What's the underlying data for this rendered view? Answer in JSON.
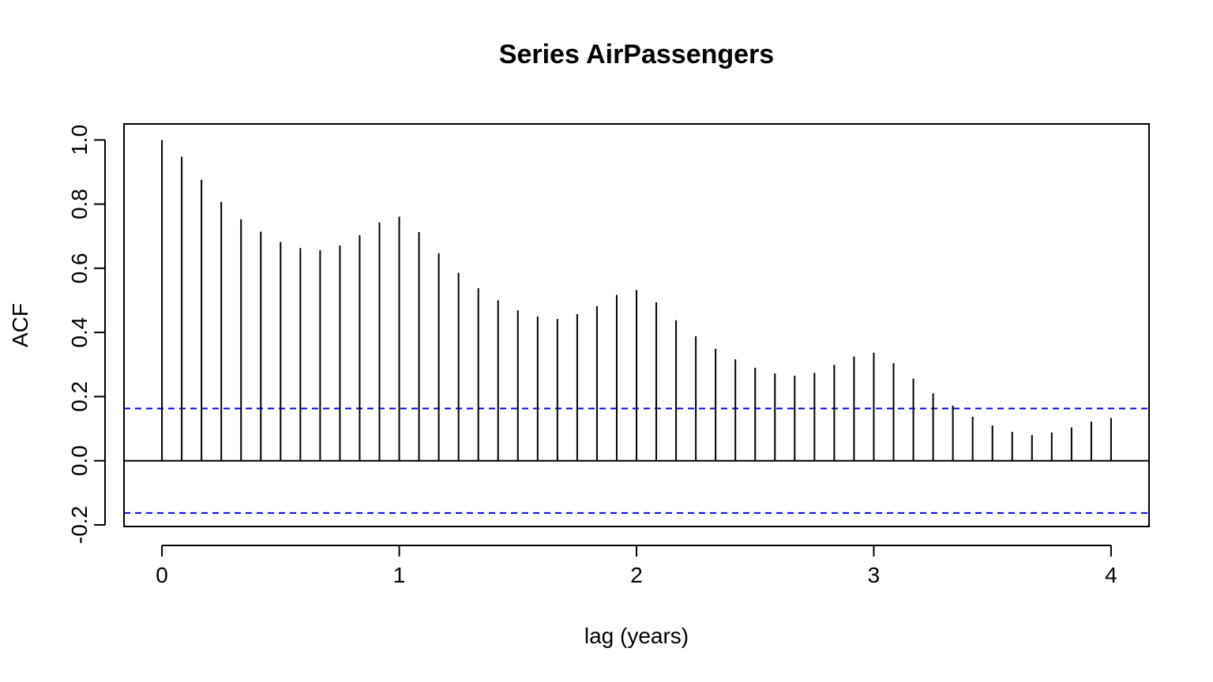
{
  "chart_data": {
    "type": "bar",
    "title": "Series  AirPassengers",
    "xlabel": "lag (years)",
    "ylabel": "ACF",
    "xlim": [
      -0.16,
      4.16
    ],
    "ylim": [
      -0.205,
      1.05
    ],
    "x_ticks": [
      0,
      1,
      2,
      3,
      4
    ],
    "y_ticks": [
      -0.2,
      0.0,
      0.2,
      0.4,
      0.6,
      0.8,
      1.0
    ],
    "x_tick_labels": [
      "0",
      "1",
      "2",
      "3",
      "4"
    ],
    "y_tick_labels": [
      "-0.2",
      "0.0",
      "0.2",
      "0.4",
      "0.6",
      "0.8",
      "1.0"
    ],
    "lag_step": 0.0833333,
    "values": [
      1.0,
      0.948,
      0.876,
      0.807,
      0.753,
      0.714,
      0.682,
      0.663,
      0.656,
      0.671,
      0.703,
      0.743,
      0.761,
      0.713,
      0.647,
      0.586,
      0.538,
      0.5,
      0.469,
      0.45,
      0.442,
      0.457,
      0.482,
      0.517,
      0.532,
      0.494,
      0.438,
      0.388,
      0.349,
      0.316,
      0.29,
      0.272,
      0.265,
      0.274,
      0.299,
      0.325,
      0.337,
      0.304,
      0.256,
      0.21,
      0.172,
      0.137,
      0.11,
      0.09,
      0.08,
      0.088,
      0.104,
      0.122,
      0.133
    ],
    "confidence_bound": 0.163,
    "colors": {
      "bars": "#000000",
      "confidence_line": "#0000ee",
      "zero_line": "#000000",
      "frame": "#000000"
    },
    "grid": false
  }
}
